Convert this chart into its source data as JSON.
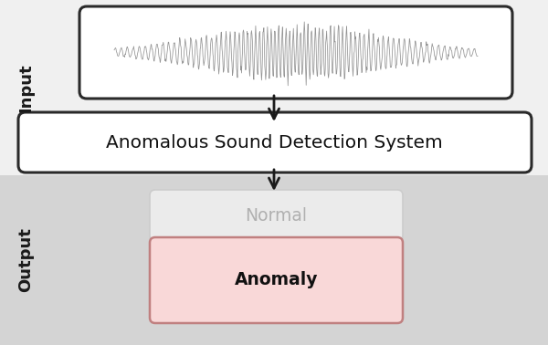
{
  "bg_color_top": "#f0f0f0",
  "bg_color_bottom": "#d4d4d4",
  "input_label": "Input",
  "output_label": "Output",
  "system_box_text": "Anomalous Sound Detection System",
  "normal_box_text": "Normal",
  "anomaly_box_text": "Anomaly",
  "input_box_bg": "#ffffff",
  "system_box_bg": "#ffffff",
  "normal_box_bg": "#ebebeb",
  "anomaly_box_bg": "#f9d8d8",
  "box_edge_color": "#2a2a2a",
  "arrow_color": "#1a1a1a",
  "input_label_color": "#1a1a1a",
  "output_label_color": "#1a1a1a",
  "system_text_color": "#111111",
  "normal_text_color": "#b0b0b0",
  "anomaly_text_color": "#111111",
  "waveform_color": "#888888",
  "normal_box_edge": "#cccccc",
  "anomaly_box_edge": "#c08080"
}
